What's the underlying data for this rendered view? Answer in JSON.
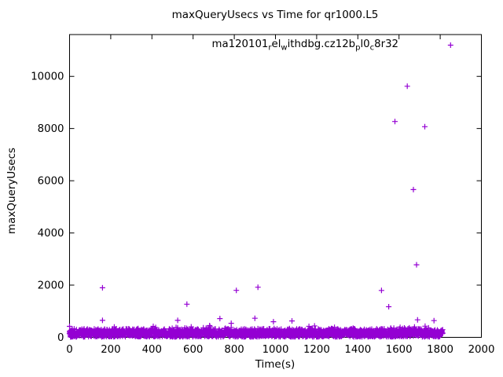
{
  "chart_data": {
    "type": "scatter",
    "title": "maxQueryUsecs vs Time for qr1000.L5",
    "xlabel": "Time(s)",
    "ylabel": "maxQueryUsecs",
    "xlim": [
      0,
      2000
    ],
    "ylim": [
      0,
      11600
    ],
    "xticks": [
      0,
      200,
      400,
      600,
      800,
      1000,
      1200,
      1400,
      1600,
      1800,
      2000
    ],
    "yticks": [
      0,
      2000,
      4000,
      6000,
      8000,
      10000
    ],
    "grid": false,
    "legend_position": "top-right-inside",
    "series": [
      {
        "name": "ma120101_rel_withdbg.cz12b_pl0_c8r32",
        "marker": "plus",
        "color": "#9400D3",
        "outliers": [
          [
            0,
            420
          ],
          [
            160,
            1900
          ],
          [
            160,
            650
          ],
          [
            525,
            650
          ],
          [
            570,
            1270
          ],
          [
            680,
            450
          ],
          [
            730,
            720
          ],
          [
            785,
            540
          ],
          [
            810,
            1800
          ],
          [
            900,
            730
          ],
          [
            915,
            1920
          ],
          [
            990,
            600
          ],
          [
            1080,
            630
          ],
          [
            1515,
            1795
          ],
          [
            1550,
            1175
          ],
          [
            1580,
            8270
          ],
          [
            1640,
            9620
          ],
          [
            1670,
            5660
          ],
          [
            1675,
            400
          ],
          [
            1685,
            2780
          ],
          [
            1690,
            670
          ],
          [
            1725,
            8070
          ],
          [
            1770,
            640
          ]
        ],
        "baseline_band": {
          "description": "dense noise band of per-interval samples",
          "t_start": 0,
          "t_end": 1813,
          "v_min": 0,
          "v_max": 470,
          "v_typical_min": 30,
          "v_typical_max": 330,
          "step_seconds": 1.5,
          "seed": 42
        }
      }
    ]
  },
  "legend": {
    "label_plain": "ma120101_rel_withdbg.cz12b_pl0_c8r32",
    "marker_glyph": "+",
    "segments": [
      {
        "t": "ma120101"
      },
      {
        "t": "r",
        "sub": true
      },
      {
        "t": "el"
      },
      {
        "t": "w",
        "sub": true
      },
      {
        "t": "ithdbg.cz12b"
      },
      {
        "t": "p",
        "sub": true
      },
      {
        "t": "l0"
      },
      {
        "t": "c",
        "sub": true
      },
      {
        "t": "8r32"
      }
    ]
  }
}
